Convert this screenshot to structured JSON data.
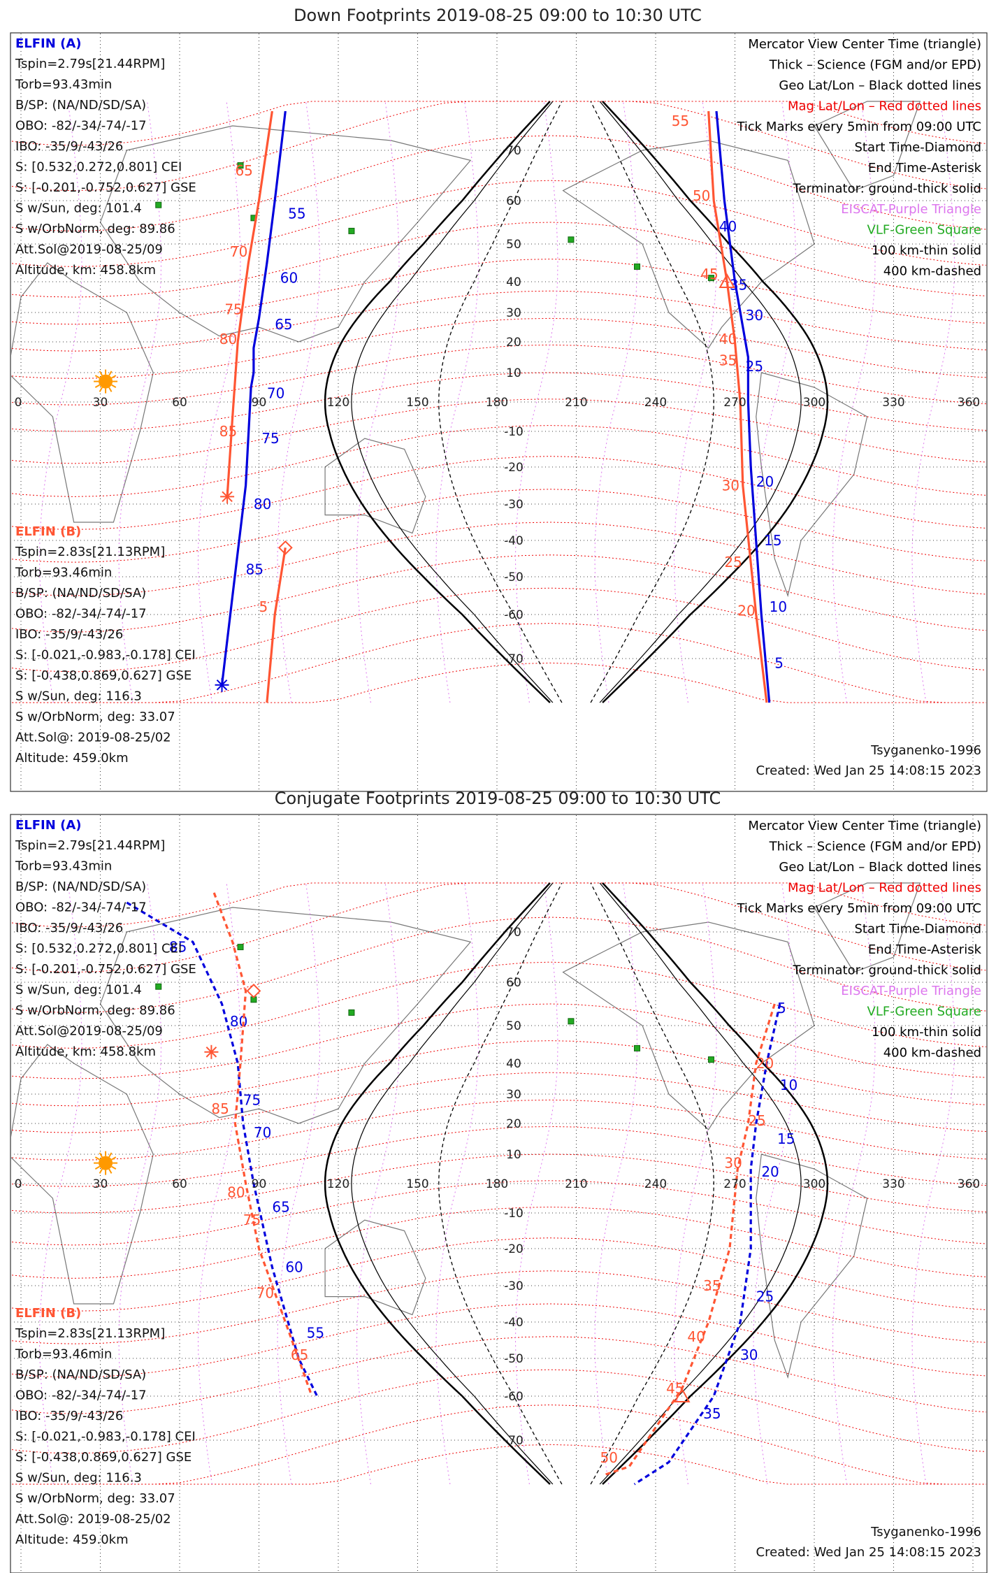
{
  "colors": {
    "elfin_a": "#0000dd",
    "elfin_b": "#ff5533",
    "grid_geo": "#000000",
    "mag_grid": "#ee0000",
    "eiscat": "#dd77ee",
    "vlf": "#22aa22",
    "coast": "#777777",
    "sun": "#ff9900"
  },
  "axes": {
    "lon_ticks": [
      "0",
      "30",
      "60",
      "90",
      "120",
      "150",
      "180",
      "210",
      "240",
      "270",
      "300",
      "330",
      "360"
    ],
    "lat_ticks": [
      "70",
      "60",
      "50",
      "40",
      "30",
      "20",
      "10",
      "-10",
      "-20",
      "-30",
      "-40",
      "-50",
      "-60",
      "-70"
    ]
  },
  "legend": [
    {
      "text": "Mercator View Center Time (triangle)",
      "color": "#000000"
    },
    {
      "text": "Thick – Science (FGM and/or EPD)",
      "color": "#000000"
    },
    {
      "text": "Geo Lat/Lon – Black dotted lines",
      "color": "#000000"
    },
    {
      "text": "Mag Lat/Lon – Red dotted lines",
      "color": "#ee0000"
    },
    {
      "text": "Tick Marks every 5min from 09:00 UTC",
      "color": "#000000"
    },
    {
      "text": "Start Time-Diamond",
      "color": "#000000"
    },
    {
      "text": "End Time-Asterisk",
      "color": "#000000"
    },
    {
      "text": "Terminator: ground-thick solid",
      "color": "#000000"
    },
    {
      "text": "EISCAT-Purple Triangle",
      "color": "#dd77ee"
    },
    {
      "text": "VLF-Green Square",
      "color": "#22aa22"
    },
    {
      "text": "100 km-thin solid",
      "color": "#000000"
    },
    {
      "text": "400 km-dashed",
      "color": "#000000"
    }
  ],
  "info_a": {
    "title": "ELFIN (A)",
    "lines": [
      "Tspin=2.79s[21.44RPM]",
      "Torb=93.43min",
      "B/SP: (NA/ND/SD/SA)",
      "OBO: -82/-34/-74/-17",
      "IBO: -35/9/-43/26",
      "S: [0.532,0.272,0.801] CEI",
      "S: [-0.201,-0.752,0.627] GSE",
      "S w/Sun, deg: 101.4",
      "S w/OrbNorm, deg: 89.86",
      "Att.Sol@2019-08-25/09",
      "Altitude, km: 458.8km"
    ]
  },
  "info_b": {
    "title": "ELFIN (B)",
    "lines": [
      "Tspin=2.83s[21.13RPM]",
      "Torb=93.46min",
      "B/SP: (NA/ND/SD/SA)",
      "OBO: -82/-34/-74/-17",
      "IBO: -35/9/-43/26",
      "S: [-0.021,-0.983,-0.178] CEI",
      "S: [-0.438,0.869,0.627] GSE",
      "S w/Sun, deg: 116.3",
      "S w/OrbNorm, deg: 33.07",
      "Att.Sol@: 2019-08-25/02",
      "Altitude: 459.0km"
    ]
  },
  "model": "Tsyganenko-1996",
  "created": "Created: Wed Jan 25 14:08:15 2023",
  "chart_data": [
    {
      "type": "scatter",
      "title": "Down Footprints 2019-08-25 09:00 to 10:30 UTC",
      "xlim": [
        0,
        360
      ],
      "ylim": [
        -80,
        80
      ],
      "sun": {
        "lon": 32,
        "lat": 7
      },
      "vlf_squares": [
        [
          83,
          67
        ],
        [
          52,
          59
        ],
        [
          88,
          56
        ],
        [
          125,
          53
        ],
        [
          208,
          51
        ],
        [
          233,
          44
        ],
        [
          261,
          41
        ]
      ],
      "series": [
        {
          "satellite": "A",
          "color": "#0000dd",
          "style": "solid",
          "points": [
            [
              100,
              78
            ],
            [
              96,
              60
            ],
            [
              93,
              45
            ],
            [
              90,
              28
            ],
            [
              88,
              18
            ],
            [
              88,
              10
            ],
            [
              87,
              5
            ],
            [
              85,
              -25
            ],
            [
              80,
              -55
            ],
            [
              76,
              -76
            ]
          ],
          "labels": [
            {
              "t": "55",
              "lon": 101,
              "lat": 57
            },
            {
              "t": "60",
              "lon": 98,
              "lat": 41
            },
            {
              "t": "65",
              "lon": 96,
              "lat": 26
            },
            {
              "t": "70",
              "lon": 93,
              "lat": 3
            },
            {
              "t": "75",
              "lon": 91,
              "lat": -12
            },
            {
              "t": "80",
              "lon": 88,
              "lat": -30
            },
            {
              "t": "85",
              "lon": 85,
              "lat": -48
            }
          ],
          "end": {
            "lon": 76,
            "lat": -76
          }
        },
        {
          "satellite": "B",
          "color": "#ff5533",
          "style": "solid",
          "points": [
            [
              95,
              78
            ],
            [
              90,
              60
            ],
            [
              86,
              45
            ],
            [
              82,
              20
            ],
            [
              80,
              -5
            ],
            [
              78,
              -28
            ]
          ],
          "labels": [
            {
              "t": "65",
              "lon": 81,
              "lat": 66
            },
            {
              "t": "70",
              "lon": 79,
              "lat": 48
            },
            {
              "t": "75",
              "lon": 77,
              "lat": 31
            },
            {
              "t": "80",
              "lon": 75,
              "lat": 21
            },
            {
              "t": "85",
              "lon": 75,
              "lat": -10
            }
          ],
          "end": {
            "lon": 78,
            "lat": -28
          }
        },
        {
          "satellite": "B",
          "color": "#ff5533",
          "style": "solid",
          "points": [
            [
              100,
              -42
            ],
            [
              96,
              -60
            ],
            [
              93,
              -80
            ]
          ],
          "labels": [
            {
              "t": "5",
              "lon": 90,
              "lat": -58
            }
          ],
          "start": {
            "lon": 100,
            "lat": -42
          }
        },
        {
          "satellite": "A",
          "color": "#0000dd",
          "style": "solid",
          "points": [
            [
              263,
              78
            ],
            [
              266,
              60
            ],
            [
              270,
              40
            ],
            [
              275,
              15
            ],
            [
              275,
              0
            ],
            [
              276,
              -20
            ],
            [
              280,
              -60
            ],
            [
              283,
              -80
            ]
          ],
          "labels": [
            {
              "t": "40",
              "lon": 264,
              "lat": 54
            },
            {
              "t": "35",
              "lon": 268,
              "lat": 39
            },
            {
              "t": "30",
              "lon": 274,
              "lat": 29
            },
            {
              "t": "25",
              "lon": 274,
              "lat": 12
            },
            {
              "t": "20",
              "lon": 278,
              "lat": -24
            },
            {
              "t": "15",
              "lon": 281,
              "lat": -40
            },
            {
              "t": "10",
              "lon": 283,
              "lat": -58
            },
            {
              "t": "5",
              "lon": 285,
              "lat": -71
            }
          ]
        },
        {
          "satellite": "B",
          "color": "#ff5533",
          "style": "solid",
          "points": [
            [
              260,
              78
            ],
            [
              262,
              60
            ],
            [
              267,
              40
            ],
            [
              270,
              20
            ],
            [
              272,
              0
            ],
            [
              273,
              -25
            ],
            [
              278,
              -60
            ],
            [
              282,
              -80
            ]
          ],
          "labels": [
            {
              "t": "55",
              "lon": 246,
              "lat": 76
            },
            {
              "t": "50",
              "lon": 254,
              "lat": 61
            },
            {
              "t": "45",
              "lon": 257,
              "lat": 42
            },
            {
              "t": "40",
              "lon": 264,
              "lat": 21
            },
            {
              "t": "35",
              "lon": 264,
              "lat": 14
            },
            {
              "t": "30",
              "lon": 265,
              "lat": -25
            },
            {
              "t": "25",
              "lon": 266,
              "lat": -46
            },
            {
              "t": "20",
              "lon": 271,
              "lat": -59
            }
          ],
          "triangle": {
            "lon": 267,
            "lat": 40
          }
        }
      ]
    },
    {
      "type": "scatter",
      "title": "Conjugate Footprints 2019-08-25 09:00 to 10:30 UTC",
      "xlim": [
        0,
        360
      ],
      "ylim": [
        -80,
        80
      ],
      "sun": {
        "lon": 32,
        "lat": 7
      },
      "vlf_squares": [
        [
          83,
          67
        ],
        [
          52,
          59
        ],
        [
          88,
          56
        ],
        [
          125,
          53
        ],
        [
          208,
          51
        ],
        [
          233,
          44
        ],
        [
          261,
          41
        ]
      ],
      "series": [
        {
          "satellite": "A",
          "color": "#0000dd",
          "style": "dashed",
          "points": [
            [
              40,
              76
            ],
            [
              65,
              68
            ],
            [
              76,
              55
            ],
            [
              82,
              40
            ],
            [
              84,
              20
            ],
            [
              88,
              0
            ],
            [
              95,
              -25
            ],
            [
              105,
              -50
            ],
            [
              112,
              -60
            ]
          ],
          "labels": [
            {
              "t": "85",
              "lon": 56,
              "lat": 67
            },
            {
              "t": "80",
              "lon": 79,
              "lat": 51
            },
            {
              "t": "75",
              "lon": 84,
              "lat": 28
            },
            {
              "t": "70",
              "lon": 88,
              "lat": 17
            },
            {
              "t": "65",
              "lon": 95,
              "lat": -8
            },
            {
              "t": "60",
              "lon": 100,
              "lat": -25
            },
            {
              "t": "55",
              "lon": 108,
              "lat": -43
            }
          ]
        },
        {
          "satellite": "B",
          "color": "#ff5533",
          "style": "dashed",
          "points": [
            [
              73,
              78
            ],
            [
              80,
              68
            ],
            [
              85,
              58
            ],
            [
              83,
              40
            ],
            [
              81,
              20
            ],
            [
              85,
              0
            ],
            [
              90,
              -20
            ],
            [
              100,
              -40
            ],
            [
              110,
              -60
            ]
          ],
          "labels": [
            {
              "t": "85",
              "lon": 72,
              "lat": 25
            },
            {
              "t": "80",
              "lon": 78,
              "lat": -3
            },
            {
              "t": "75",
              "lon": 84,
              "lat": -12
            },
            {
              "t": "70",
              "lon": 89,
              "lat": -32
            },
            {
              "t": "65",
              "lon": 102,
              "lat": -49
            }
          ],
          "start": {
            "lon": 88,
            "lat": 58
          },
          "end": {
            "lon": 72,
            "lat": 43
          }
        },
        {
          "satellite": "A",
          "color": "#0000dd",
          "style": "dashed",
          "points": [
            [
              287,
              55
            ],
            [
              282,
              40
            ],
            [
              278,
              20
            ],
            [
              276,
              5
            ],
            [
              276,
              -20
            ],
            [
              272,
              -40
            ],
            [
              262,
              -60
            ],
            [
              245,
              -75
            ],
            [
              232,
              -80
            ]
          ],
          "labels": [
            {
              "t": "5",
              "lon": 286,
              "lat": 54
            },
            {
              "t": "10",
              "lon": 287,
              "lat": 33
            },
            {
              "t": "15",
              "lon": 286,
              "lat": 15
            },
            {
              "t": "20",
              "lon": 280,
              "lat": 4
            },
            {
              "t": "25",
              "lon": 278,
              "lat": -33
            },
            {
              "t": "30",
              "lon": 272,
              "lat": -49
            },
            {
              "t": "35",
              "lon": 258,
              "lat": -64
            }
          ]
        },
        {
          "satellite": "B",
          "color": "#ff5533",
          "style": "dashed",
          "points": [
            [
              285,
              55
            ],
            [
              278,
              40
            ],
            [
              275,
              20
            ],
            [
              271,
              5
            ],
            [
              268,
              -20
            ],
            [
              260,
              -40
            ],
            [
              250,
              -58
            ],
            [
              230,
              -76
            ],
            [
              220,
              -78
            ]
          ],
          "labels": [
            {
              "t": "20",
              "lon": 278,
              "lat": 40
            },
            {
              "t": "25",
              "lon": 275,
              "lat": 21
            },
            {
              "t": "30",
              "lon": 266,
              "lat": 7
            },
            {
              "t": "35",
              "lon": 258,
              "lat": -30
            },
            {
              "t": "40",
              "lon": 252,
              "lat": -44
            },
            {
              "t": "45",
              "lon": 244,
              "lat": -58
            },
            {
              "t": "50",
              "lon": 219,
              "lat": -74
            }
          ],
          "triangle": {
            "lon": 250,
            "lat": -60
          }
        }
      ]
    }
  ]
}
